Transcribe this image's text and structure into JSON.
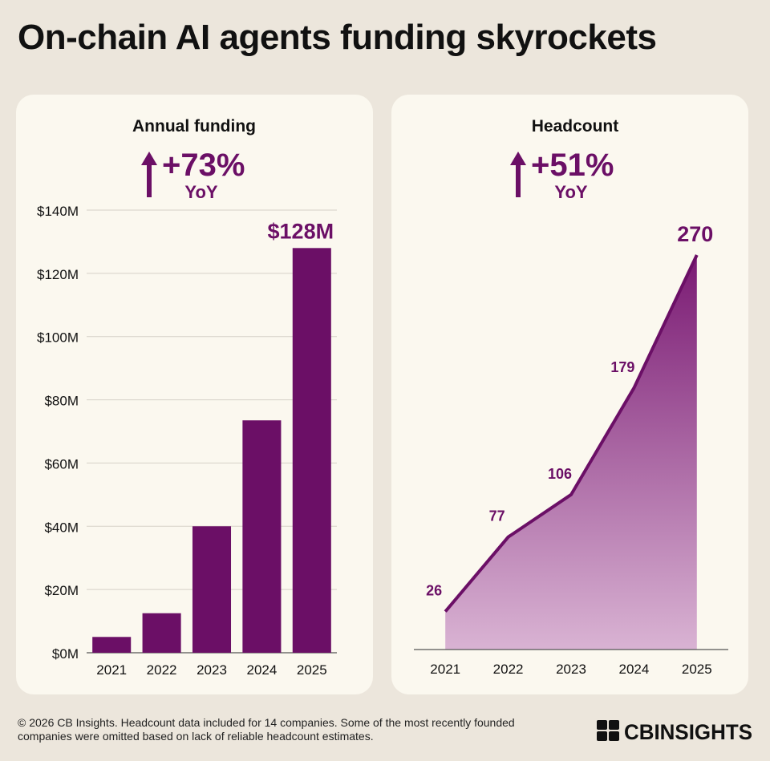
{
  "title": "On-chain AI agents funding skyrockets",
  "colors": {
    "primary": "#6b0f66",
    "background": "#ece6dc",
    "card": "#fbf8ef",
    "area_top": "#7a1a73",
    "area_bottom": "#d9b3d3"
  },
  "funding": {
    "subtitle": "Annual funding",
    "yoy_value": "+73%",
    "yoy_label": "YoY",
    "arrow_icon": "arrow-up-icon"
  },
  "headcount": {
    "subtitle": "Headcount",
    "yoy_value": "+51%",
    "yoy_label": "YoY",
    "arrow_icon": "arrow-up-icon"
  },
  "chart_data": [
    {
      "type": "bar",
      "title": "Annual funding",
      "categories": [
        "2021",
        "2022",
        "2023",
        "2024",
        "2025"
      ],
      "values": [
        5,
        12.5,
        40,
        73.5,
        128
      ],
      "data_labels": [
        "",
        "",
        "",
        "",
        "$128M"
      ],
      "y_ticks": [
        "$0M",
        "$20M",
        "$40M",
        "$60M",
        "$80M",
        "$100M",
        "$120M",
        "$140M"
      ],
      "ylim": [
        0,
        140
      ],
      "grid": true,
      "units": "$M"
    },
    {
      "type": "area",
      "title": "Headcount",
      "categories": [
        "2021",
        "2022",
        "2023",
        "2024",
        "2025"
      ],
      "values": [
        26,
        77,
        106,
        179,
        270
      ],
      "data_labels": [
        "26",
        "77",
        "106",
        "179",
        "270"
      ],
      "ylim": [
        0,
        270
      ],
      "grid": false
    }
  ],
  "footer": {
    "line1": "© 2026 CB Insights. Headcount data included for 14 companies. Some of the most recently founded",
    "line2": "companies were omitted based on lack of reliable headcount estimates.",
    "logo_text": "CBINSIGHTS",
    "logo_icon": "cb-insights-logo-icon"
  }
}
